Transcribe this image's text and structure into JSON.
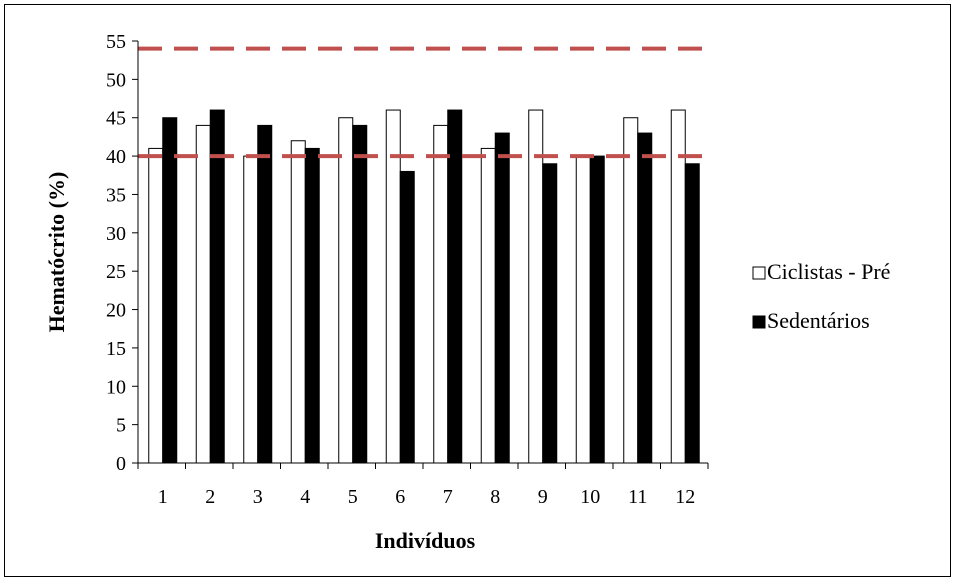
{
  "chart_data": {
    "type": "bar",
    "categories": [
      "1",
      "2",
      "3",
      "4",
      "5",
      "6",
      "7",
      "8",
      "9",
      "10",
      "11",
      "12"
    ],
    "series": [
      {
        "name": "Ciclistas - Pré",
        "values": [
          41,
          44,
          40,
          42,
          45,
          46,
          44,
          41,
          46,
          40,
          45,
          46
        ],
        "color": "#ffffff"
      },
      {
        "name": "Sedentários",
        "values": [
          45,
          46,
          44,
          41,
          44,
          38,
          46,
          43,
          39,
          40,
          43,
          39
        ],
        "color": "#000000"
      }
    ],
    "reference_lines": [
      {
        "y": 54,
        "color": "#c0504d",
        "style": "dashed"
      },
      {
        "y": 40,
        "color": "#c0504d",
        "style": "dashed"
      }
    ],
    "title": "",
    "xlabel": "Indivíduos",
    "ylabel": "Hematócrito (%)",
    "ylim": [
      0,
      55
    ],
    "yticks": [
      0,
      5,
      10,
      15,
      20,
      25,
      30,
      35,
      40,
      45,
      50,
      55
    ],
    "grid": false,
    "legend_position": "right"
  }
}
